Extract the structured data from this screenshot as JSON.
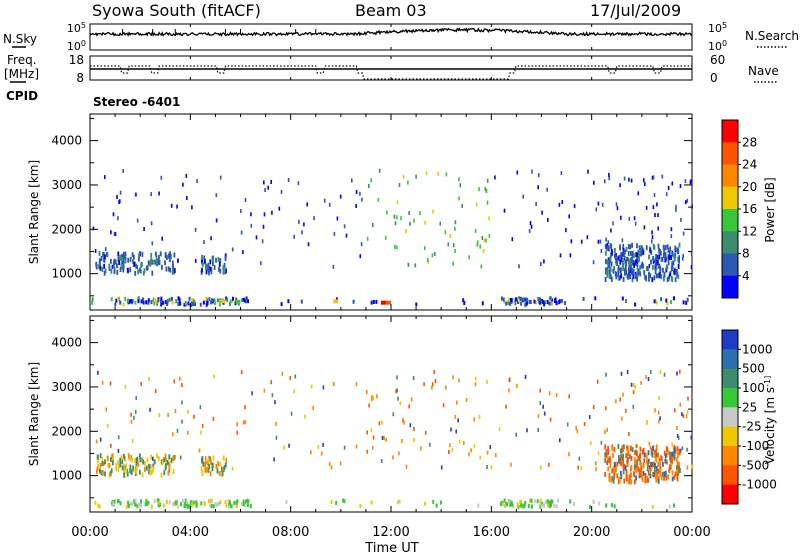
{
  "header": {
    "station": "Syowa South (fitACF)",
    "beam": "Beam 03",
    "date": "17/Jul/2009"
  },
  "side_labels": {
    "nsky": "N.Sky",
    "freq_line1": "Freq.",
    "freq_line2": "[MHz]",
    "cpid": "CPID",
    "nsearch": "N.Search",
    "nave": "Nave"
  },
  "cpid_value": "Stereo -6401",
  "colors": {
    "power": [
      "#0000ff",
      "#2a58b4",
      "#3c8c6e",
      "#36c836",
      "#f0c800",
      "#ff8800",
      "#ff5500",
      "#ff0000"
    ],
    "velocity": [
      "#1e3cc8",
      "#2a6fb0",
      "#3c8c6e",
      "#36c836",
      "#c8c8c8",
      "#f0c800",
      "#ff8800",
      "#ff5500",
      "#ff0000"
    ]
  },
  "chart_data": [
    {
      "type": "line",
      "id": "nsky",
      "ylabels": [
        "10^5",
        "10^0"
      ],
      "right_ylabels": [
        "10^5",
        "10^0"
      ]
    },
    {
      "type": "line",
      "id": "freq",
      "ylim": [
        8,
        18
      ],
      "yticks": [
        "18",
        "8"
      ],
      "right_ylim": [
        0,
        60
      ],
      "right_yticks": [
        "60",
        "0"
      ]
    },
    {
      "type": "heatmap",
      "id": "power",
      "ylabel": "Slant Range [km]",
      "yticks": [
        "1000",
        "2000",
        "3000",
        "4000"
      ],
      "ylim": [
        180,
        4600
      ],
      "colorbar_label": "Power [dB]",
      "colorbar_ticks": [
        "4",
        "8",
        "12",
        "16",
        "20",
        "24",
        "28"
      ]
    },
    {
      "type": "heatmap",
      "id": "velocity",
      "ylabel": "Slant Range [km]",
      "yticks": [
        "1000",
        "2000",
        "3000",
        "4000"
      ],
      "ylim": [
        180,
        4600
      ],
      "colorbar_label": "Velocity [m s^-1]",
      "colorbar_ticks": [
        "1000",
        "500",
        "100",
        "25",
        "-25",
        "-100",
        "-500",
        "-1000"
      ]
    }
  ],
  "x_axis": {
    "ticks": [
      "00:00",
      "04:00",
      "08:00",
      "12:00",
      "16:00",
      "20:00",
      "00:00"
    ],
    "label": "Time UT",
    "xlim": [
      0,
      24
    ]
  }
}
